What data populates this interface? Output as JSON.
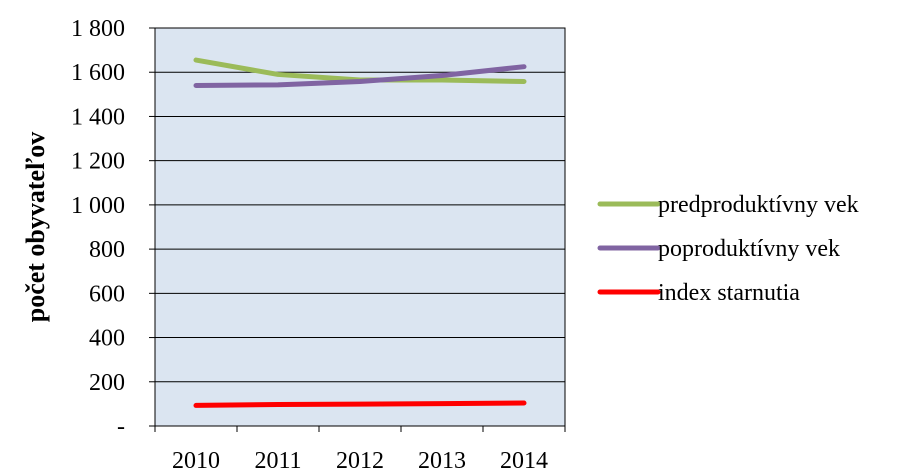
{
  "chart_data": {
    "type": "line",
    "title": "",
    "xlabel": "",
    "ylabel": "počet obyvateľov",
    "categories": [
      "2010",
      "2011",
      "2012",
      "2013",
      "2014"
    ],
    "ylim": [
      0,
      1800
    ],
    "y_ticks": [
      {
        "value": 0,
        "label": "-"
      },
      {
        "value": 200,
        "label": "200"
      },
      {
        "value": 400,
        "label": "400"
      },
      {
        "value": 600,
        "label": "600"
      },
      {
        "value": 800,
        "label": "800"
      },
      {
        "value": 1000,
        "label": "1 000"
      },
      {
        "value": 1200,
        "label": "1 200"
      },
      {
        "value": 1400,
        "label": "1 400"
      },
      {
        "value": 1600,
        "label": "1 600"
      },
      {
        "value": 1800,
        "label": "1 800"
      }
    ],
    "grid": true,
    "plot_background": "#dbe5f1",
    "legend_position": "right",
    "series": [
      {
        "name": "predproduktívny vek",
        "color": "#9bbb59",
        "values": [
          1655,
          1590,
          1565,
          1565,
          1558
        ]
      },
      {
        "name": "poproduktívny vek",
        "color": "#8064a2",
        "values": [
          1540,
          1543,
          1558,
          1585,
          1625
        ]
      },
      {
        "name": "index starnutia",
        "color": "#ff0000",
        "values": [
          93,
          97,
          99,
          101,
          104
        ]
      }
    ]
  }
}
